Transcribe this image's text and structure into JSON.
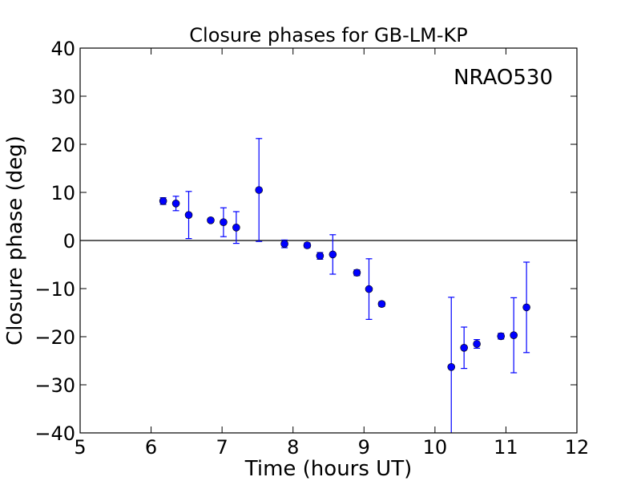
{
  "chart_data": {
    "type": "scatter",
    "title": "Closure phases for GB-LM-KP",
    "xlabel": "Time (hours UT)",
    "ylabel": "Closure phase (deg)",
    "annotation": "NRAO530",
    "xlim": [
      5,
      12
    ],
    "ylim": [
      -40,
      40
    ],
    "xticks": [
      5,
      6,
      7,
      8,
      9,
      10,
      11,
      12
    ],
    "yticks": [
      -40,
      -30,
      -20,
      -10,
      0,
      10,
      20,
      30,
      40
    ],
    "xtick_labels": [
      "5",
      "6",
      "7",
      "8",
      "9",
      "10",
      "11",
      "12"
    ],
    "ytick_labels": [
      "−40",
      "−30",
      "−20",
      "−10",
      "0",
      "10",
      "20",
      "30",
      "40"
    ],
    "reference_line_y": 0,
    "grid": false,
    "marker_color": "#0000ff",
    "series": [
      {
        "points": [
          {
            "x": 6.17,
            "y": 8.2,
            "err": 0.7
          },
          {
            "x": 6.35,
            "y": 7.7,
            "err": 1.5
          },
          {
            "x": 6.53,
            "y": 5.3,
            "err": 4.9
          },
          {
            "x": 6.84,
            "y": 4.2,
            "err": 0.4
          },
          {
            "x": 7.02,
            "y": 3.8,
            "err": 3.0
          },
          {
            "x": 7.2,
            "y": 2.7,
            "err": 3.3
          },
          {
            "x": 7.52,
            "y": 10.5,
            "err": 10.7
          },
          {
            "x": 7.88,
            "y": -0.7,
            "err": 0.8
          },
          {
            "x": 8.2,
            "y": -1.0,
            "err": 0.5
          },
          {
            "x": 8.38,
            "y": -3.2,
            "err": 0.7
          },
          {
            "x": 8.56,
            "y": -2.9,
            "err": 4.1
          },
          {
            "x": 8.9,
            "y": -6.7,
            "err": 0.6
          },
          {
            "x": 9.07,
            "y": -10.1,
            "err": 6.3
          },
          {
            "x": 9.25,
            "y": -13.2,
            "err": 0.5
          },
          {
            "x": 10.23,
            "y": -26.3,
            "err": 14.5
          },
          {
            "x": 10.41,
            "y": -22.3,
            "err": 4.3
          },
          {
            "x": 10.59,
            "y": -21.5,
            "err": 0.9
          },
          {
            "x": 10.93,
            "y": -19.9,
            "err": 0.6
          },
          {
            "x": 11.11,
            "y": -19.7,
            "err": 7.8
          },
          {
            "x": 11.29,
            "y": -13.9,
            "err": 9.4
          }
        ]
      }
    ]
  }
}
